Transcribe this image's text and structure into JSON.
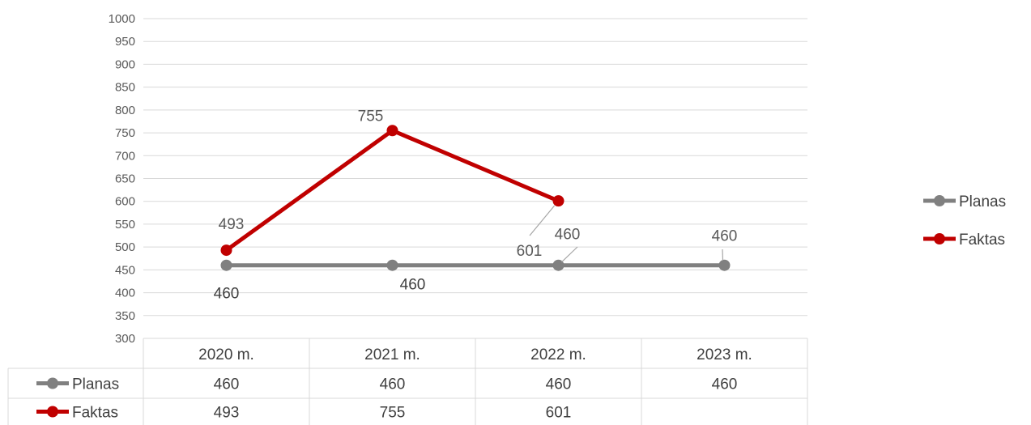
{
  "chart_data": {
    "type": "line",
    "categories": [
      "2020 m.",
      "2021 m.",
      "2022 m.",
      "2023 m."
    ],
    "ylim": [
      300,
      1000
    ],
    "y_ticks": [
      300,
      350,
      400,
      450,
      500,
      550,
      600,
      650,
      700,
      750,
      800,
      850,
      900,
      950,
      1000
    ],
    "grid": true,
    "legend_position": "right",
    "series": [
      {
        "name": "Planas",
        "color": "#808080",
        "values": [
          460,
          460,
          460,
          460
        ],
        "display": [
          "460",
          "460",
          "460",
          "460"
        ]
      },
      {
        "name": "Faktas",
        "color": "#c00000",
        "values": [
          493,
          755,
          601,
          null
        ],
        "display": [
          "493",
          "755",
          "601",
          ""
        ]
      }
    ]
  }
}
